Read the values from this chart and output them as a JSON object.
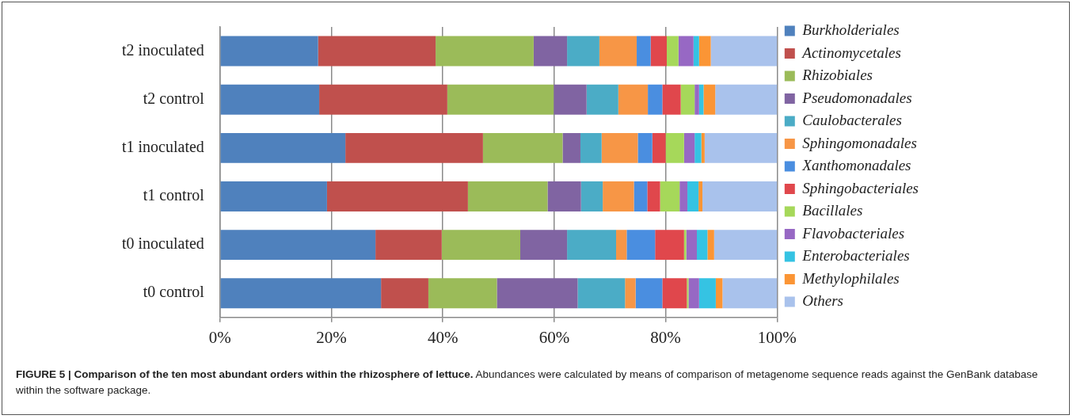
{
  "chart_data": {
    "type": "bar",
    "orientation": "horizontal",
    "stacked": true,
    "title": "FIGURE 5 | Comparison of the ten most abundant orders within the rhizosphere of lettuce.",
    "annotations": [
      "Abundances were calculated by means of comparison of metagenome sequence reads against the GenBank database within the software package."
    ],
    "categories": [
      "t2 inoculated",
      "t2 control",
      "t1 inoculated",
      "t1 control",
      "t0 inoculated",
      "t0 control"
    ],
    "series": [
      {
        "name": "Burkholderiales",
        "color": "#4f81bd",
        "values": [
          17.6,
          17.8,
          22.5,
          19.2,
          27.9,
          28.9
        ]
      },
      {
        "name": "Actinomycetales",
        "color": "#c0504d",
        "values": [
          21.1,
          23.0,
          24.7,
          25.3,
          11.9,
          8.5
        ]
      },
      {
        "name": "Rhizobiales",
        "color": "#9bbb59",
        "values": [
          17.6,
          19.1,
          14.3,
          14.3,
          14.1,
          12.3
        ]
      },
      {
        "name": "Pseudomonadales",
        "color": "#8064a2",
        "values": [
          6.0,
          5.9,
          3.2,
          6.0,
          8.4,
          14.5
        ]
      },
      {
        "name": "Caulobacterales",
        "color": "#4bacc6",
        "values": [
          5.8,
          5.7,
          3.8,
          3.9,
          8.8,
          8.5
        ]
      },
      {
        "name": "Sphingomonadales",
        "color": "#f79646",
        "values": [
          6.7,
          5.3,
          6.5,
          5.6,
          1.9,
          1.9
        ]
      },
      {
        "name": "Xanthomonadales",
        "color": "#4a8ee0",
        "values": [
          2.5,
          2.6,
          2.6,
          2.4,
          5.1,
          4.8
        ]
      },
      {
        "name": "Sphingobacteriales",
        "color": "#e0474c",
        "values": [
          2.9,
          3.3,
          2.4,
          2.3,
          5.2,
          4.4
        ]
      },
      {
        "name": "Bacillales",
        "color": "#a6d85a",
        "values": [
          2.1,
          2.5,
          3.3,
          3.5,
          0.4,
          0.3
        ]
      },
      {
        "name": "Flavobacteriales",
        "color": "#9768c4",
        "values": [
          2.7,
          0.8,
          1.9,
          1.4,
          1.9,
          1.9
        ]
      },
      {
        "name": "Enterobacteriales",
        "color": "#35c3e3",
        "values": [
          1.0,
          0.8,
          1.2,
          2.0,
          1.9,
          3.0
        ]
      },
      {
        "name": "Methylophilales",
        "color": "#fb9535",
        "values": [
          2.1,
          2.1,
          0.6,
          0.7,
          1.2,
          1.2
        ]
      },
      {
        "name": "Others",
        "color": "#a9c2ec",
        "values": [
          11.9,
          11.1,
          13.0,
          13.4,
          11.3,
          9.8
        ]
      }
    ],
    "xlim": [
      0,
      100
    ],
    "xticks": [
      {
        "value": 0,
        "label": "0%"
      },
      {
        "value": 20,
        "label": "20%"
      },
      {
        "value": 40,
        "label": "40%"
      },
      {
        "value": 60,
        "label": "60%"
      },
      {
        "value": 80,
        "label": "80%"
      },
      {
        "value": 100,
        "label": "100%"
      }
    ],
    "grid": "x",
    "legend": "right"
  }
}
